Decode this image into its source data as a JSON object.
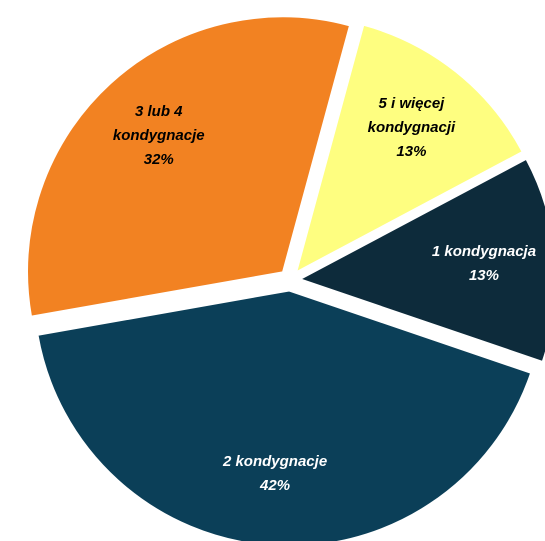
{
  "chart_data": {
    "type": "pie",
    "categories": [
      "1 kondygnacja",
      "2 kondygnacje",
      "3 lub 4 kondygnacje",
      "5 i więcej kondygnacji"
    ],
    "values": [
      13,
      42,
      32,
      13
    ],
    "value_labels": [
      "13%",
      "42%",
      "32%",
      "13%"
    ],
    "colors": [
      "#0d2b3b",
      "#0b3f58",
      "#f28222",
      "#fefe80"
    ]
  }
}
